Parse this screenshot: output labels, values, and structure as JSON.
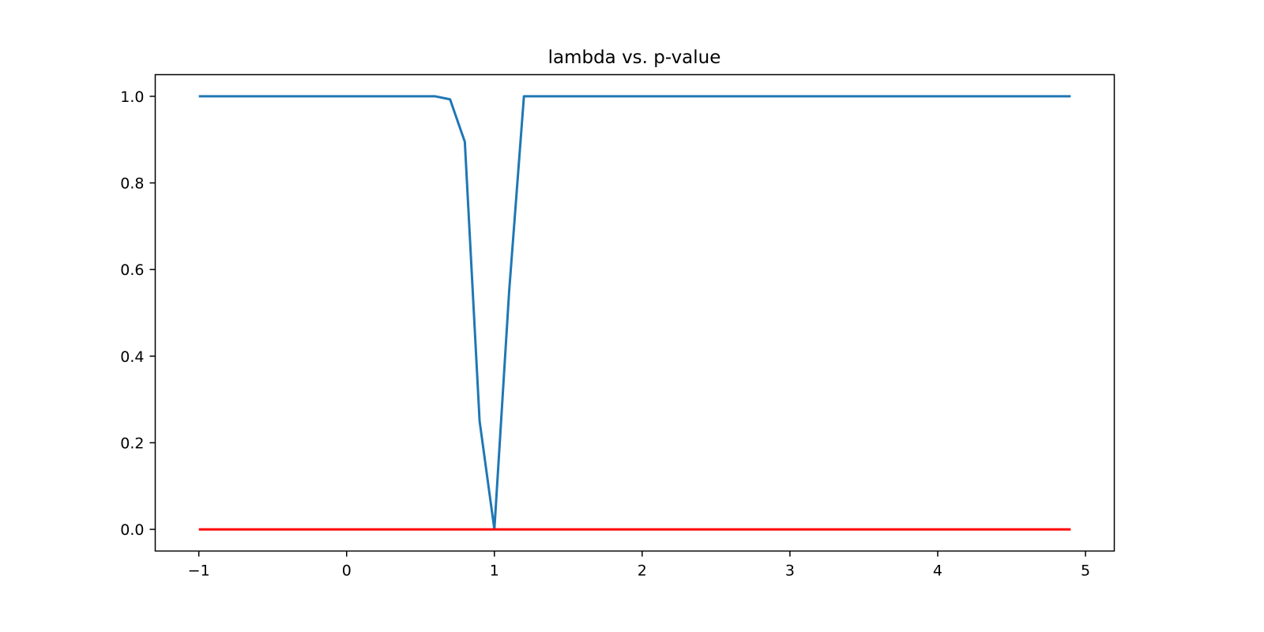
{
  "chart_data": {
    "type": "line",
    "title": "lambda vs. p-value",
    "xlabel": "",
    "ylabel": "",
    "xlim": [
      -1.295,
      5.195
    ],
    "ylim": [
      -0.05,
      1.05
    ],
    "xticks": [
      -1,
      0,
      1,
      2,
      3,
      4,
      5
    ],
    "xtick_labels": [
      "−1",
      "0",
      "1",
      "2",
      "3",
      "4",
      "5"
    ],
    "yticks": [
      0.0,
      0.2,
      0.4,
      0.6,
      0.8,
      1.0
    ],
    "ytick_labels": [
      "0.0",
      "0.2",
      "0.4",
      "0.6",
      "0.8",
      "1.0"
    ],
    "grid": false,
    "series": [
      {
        "color": "#1f77b4",
        "x": [
          -1.0,
          -0.9,
          -0.8,
          -0.7,
          -0.6,
          -0.5,
          -0.4,
          -0.3,
          -0.2,
          -0.1,
          0.0,
          0.1,
          0.2,
          0.3,
          0.4,
          0.5,
          0.6,
          0.7,
          0.8,
          0.9,
          1.0,
          1.1,
          1.2,
          1.3,
          1.4,
          1.5,
          1.6,
          1.7,
          1.8,
          1.9,
          2.0,
          2.1,
          2.2,
          2.3,
          2.4,
          2.5,
          2.6,
          2.7,
          2.8,
          2.9,
          3.0,
          3.1,
          3.2,
          3.3,
          3.4,
          3.5,
          3.6,
          3.7,
          3.8,
          3.9,
          4.0,
          4.1,
          4.2,
          4.3,
          4.4,
          4.5,
          4.6,
          4.7,
          4.8,
          4.9
        ],
        "y": [
          1.0,
          1.0,
          1.0,
          1.0,
          1.0,
          1.0,
          1.0,
          1.0,
          1.0,
          1.0,
          1.0,
          1.0,
          1.0,
          1.0,
          1.0,
          1.0,
          1.0,
          0.993,
          0.895,
          0.25,
          0.0,
          0.55,
          1.0,
          1.0,
          1.0,
          1.0,
          1.0,
          1.0,
          1.0,
          1.0,
          1.0,
          1.0,
          1.0,
          1.0,
          1.0,
          1.0,
          1.0,
          1.0,
          1.0,
          1.0,
          1.0,
          1.0,
          1.0,
          1.0,
          1.0,
          1.0,
          1.0,
          1.0,
          1.0,
          1.0,
          1.0,
          1.0,
          1.0,
          1.0,
          1.0,
          1.0,
          1.0,
          1.0,
          1.0,
          1.0
        ]
      },
      {
        "color": "#ff0000",
        "x": [
          -1.0,
          4.9
        ],
        "y": [
          0.0,
          0.0
        ]
      }
    ]
  }
}
